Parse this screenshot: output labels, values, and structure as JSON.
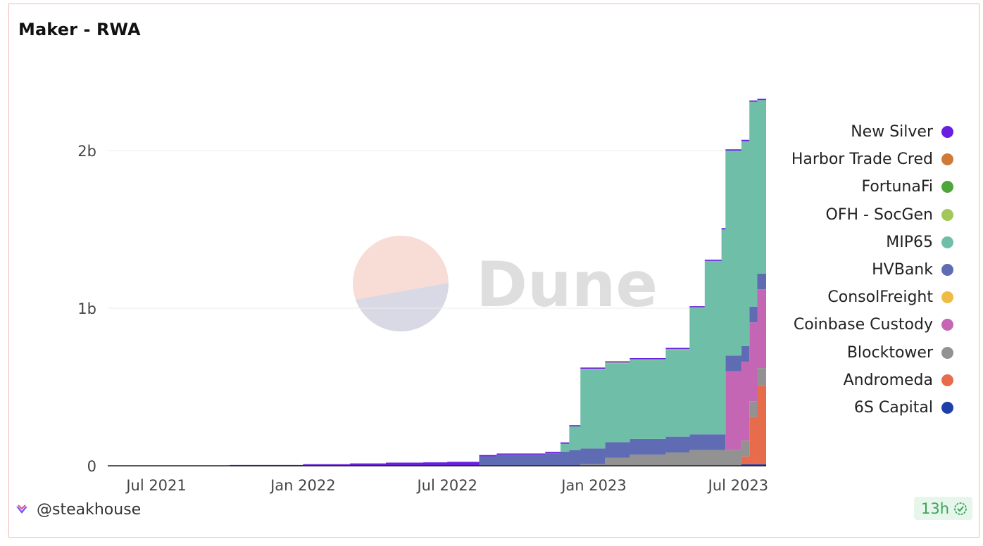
{
  "title": "Maker - RWA",
  "author": "@steakhouse",
  "refresh_badge": "13h",
  "watermark": "Dune",
  "colors": {
    "New Silver": "#6a1fe0",
    "Harbor Trade Cred": "#cf7b38",
    "FortunaFi": "#4ea63b",
    "OFH - SocGen": "#a2c85a",
    "MIP65": "#6fbfa8",
    "HVBank": "#5f6bb3",
    "ConsolFreight": "#eebc45",
    "Coinbase Custody": "#c566b4",
    "Blocktower": "#929292",
    "Andromeda": "#e66c4b",
    "6S Capital": "#1e3fa8"
  },
  "chart_data": {
    "type": "area",
    "stacked": true,
    "x_tick_labels": [
      "Jul 2021",
      "Jan 2022",
      "Jul 2022",
      "Jan 2023",
      "Jul 2023"
    ],
    "y_tick_labels": [
      "0",
      "1b",
      "2b"
    ],
    "ylim": [
      0,
      2500000000
    ],
    "grid": true,
    "legend_position": "right",
    "legend": [
      "New Silver",
      "Harbor Trade Cred",
      "FortunaFi",
      "OFH - SocGen",
      "MIP65",
      "HVBank",
      "ConsolFreight",
      "Coinbase Custody",
      "Blocktower",
      "Andromeda",
      "6S Capital"
    ],
    "x": [
      "2021-05-01",
      "2021-07-01",
      "2021-10-01",
      "2022-01-01",
      "2022-03-01",
      "2022-04-15",
      "2022-06-01",
      "2022-07-01",
      "2022-08-10",
      "2022-09-01",
      "2022-11-01",
      "2022-11-20",
      "2022-12-01",
      "2022-12-15",
      "2023-01-15",
      "2023-02-15",
      "2023-04-01",
      "2023-05-01",
      "2023-05-20",
      "2023-06-10",
      "2023-06-15",
      "2023-07-01",
      "2023-07-05",
      "2023-07-15",
      "2023-07-25",
      "2023-08-05"
    ],
    "series": [
      {
        "name": "6S Capital",
        "values": [
          0,
          0,
          0,
          0,
          0,
          0,
          0,
          0,
          0,
          0,
          0,
          0,
          0,
          0,
          0,
          0,
          0,
          0,
          0,
          0,
          0,
          0,
          10000000,
          10000000,
          10000000,
          10000000
        ]
      },
      {
        "name": "Andromeda",
        "values": [
          0,
          0,
          0,
          0,
          0,
          0,
          0,
          0,
          0,
          0,
          0,
          0,
          0,
          0,
          0,
          0,
          0,
          0,
          0,
          0,
          0,
          0,
          50000000,
          300000000,
          500000000,
          610000000
        ]
      },
      {
        "name": "Blocktower",
        "values": [
          0,
          0,
          0,
          0,
          0,
          0,
          0,
          0,
          0,
          0,
          0,
          0,
          0,
          10000000,
          50000000,
          70000000,
          85000000,
          100000000,
          100000000,
          100000000,
          100000000,
          100000000,
          100000000,
          100000000,
          110000000,
          120000000
        ]
      },
      {
        "name": "Coinbase Custody",
        "values": [
          0,
          0,
          0,
          0,
          0,
          0,
          0,
          0,
          0,
          0,
          0,
          0,
          0,
          0,
          0,
          0,
          0,
          0,
          0,
          0,
          500000000,
          500000000,
          500000000,
          500000000,
          500000000,
          500000000
        ]
      },
      {
        "name": "HVBank",
        "values": [
          0,
          0,
          0,
          0,
          0,
          0,
          0,
          0,
          60000000,
          70000000,
          80000000,
          90000000,
          100000000,
          100000000,
          100000000,
          100000000,
          100000000,
          100000000,
          100000000,
          100000000,
          100000000,
          100000000,
          100000000,
          100000000,
          100000000,
          100000000
        ]
      },
      {
        "name": "MIP65",
        "values": [
          0,
          0,
          0,
          0,
          0,
          0,
          0,
          0,
          0,
          0,
          0,
          50000000,
          150000000,
          500000000,
          500000000,
          500000000,
          550000000,
          800000000,
          1100000000,
          1300000000,
          1300000000,
          1300000000,
          1300000000,
          1300000000,
          1100000000,
          1100000000
        ]
      },
      {
        "name": "OFH - SocGen",
        "values": [
          0,
          0,
          0,
          0,
          0,
          0,
          0,
          0,
          0,
          0,
          0,
          0,
          0,
          5000000,
          5000000,
          5000000,
          5000000,
          5000000,
          0,
          0,
          0,
          0,
          0,
          0,
          0,
          0
        ]
      },
      {
        "name": "ConsolFreight",
        "values": [
          0,
          0,
          0,
          0,
          0,
          0,
          0,
          0,
          0,
          0,
          0,
          0,
          0,
          0,
          0,
          0,
          0,
          0,
          0,
          0,
          0,
          0,
          0,
          0,
          0,
          0
        ]
      },
      {
        "name": "FortunaFi",
        "values": [
          0,
          0,
          0,
          0,
          0,
          0,
          0,
          0,
          0,
          0,
          0,
          0,
          0,
          0,
          0,
          0,
          0,
          0,
          0,
          0,
          0,
          0,
          0,
          0,
          0,
          0
        ]
      },
      {
        "name": "Harbor Trade Cred",
        "values": [
          0,
          0,
          0,
          0,
          0,
          0,
          0,
          0,
          0,
          0,
          0,
          0,
          0,
          0,
          0,
          0,
          0,
          0,
          0,
          0,
          0,
          0,
          0,
          0,
          0,
          0
        ]
      },
      {
        "name": "New Silver",
        "values": [
          0,
          2000000,
          5000000,
          10000000,
          15000000,
          20000000,
          22000000,
          25000000,
          8000000,
          8000000,
          8000000,
          8000000,
          8000000,
          8000000,
          8000000,
          8000000,
          8000000,
          8000000,
          8000000,
          8000000,
          8000000,
          8000000,
          8000000,
          8000000,
          8000000,
          8000000
        ]
      }
    ]
  }
}
